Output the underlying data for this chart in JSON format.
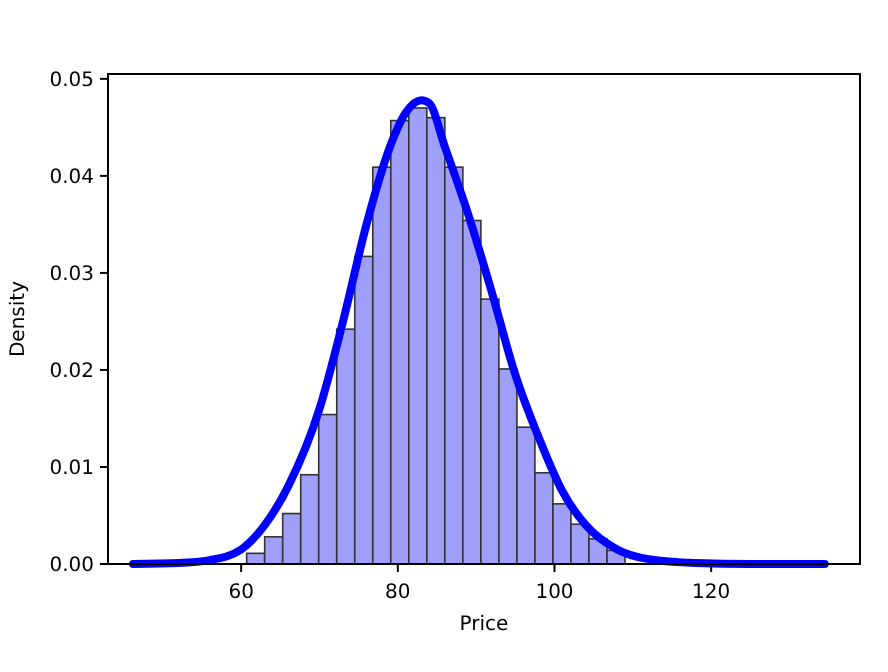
{
  "chart_data": {
    "type": "histogram",
    "xlabel": "Price",
    "ylabel": "Density",
    "xlim": [
      43,
      139
    ],
    "ylim": [
      0,
      0.0505
    ],
    "xticks": [
      60,
      80,
      100,
      120
    ],
    "yticks": [
      {
        "value": 0,
        "label": "0.00"
      },
      {
        "value": 0.01,
        "label": "0.01"
      },
      {
        "value": 0.02,
        "label": "0.02"
      },
      {
        "value": 0.03,
        "label": "0.03"
      },
      {
        "value": 0.04,
        "label": "0.04"
      },
      {
        "value": 0.05,
        "label": "0.05"
      }
    ],
    "grid": false,
    "series": [
      {
        "color": "#9f9ff9",
        "bins": [
          60.7,
          63.0,
          65.3,
          67.6,
          69.9,
          72.2,
          74.5,
          76.8,
          79.1,
          81.4,
          83.7,
          86.0,
          88.3,
          90.6,
          92.9,
          95.2,
          97.5,
          99.8,
          102.1,
          104.4,
          106.7,
          109.0
        ],
        "values": [
          0.0011,
          0.0028,
          0.0052,
          0.0092,
          0.0154,
          0.0242,
          0.0317,
          0.0409,
          0.0457,
          0.047,
          0.046,
          0.0409,
          0.0354,
          0.0273,
          0.0201,
          0.0141,
          0.0094,
          0.0062,
          0.0041,
          0.0026,
          0.0014
        ]
      },
      {
        "type": "line",
        "color": "#0000ff",
        "x": [
          46.2,
          52,
          56,
          60,
          63,
          66,
          70,
          73,
          76,
          79,
          81,
          83,
          84,
          86,
          89,
          92,
          95,
          98,
          101,
          104,
          108,
          112,
          118,
          125,
          134.5
        ],
        "values": [
          0,
          0.0001,
          0.0004,
          0.0015,
          0.004,
          0.008,
          0.016,
          0.025,
          0.035,
          0.043,
          0.0465,
          0.0478,
          0.0475,
          0.043,
          0.036,
          0.028,
          0.0195,
          0.013,
          0.0075,
          0.004,
          0.0015,
          0.0005,
          0.0001,
          0,
          0
        ]
      }
    ]
  }
}
